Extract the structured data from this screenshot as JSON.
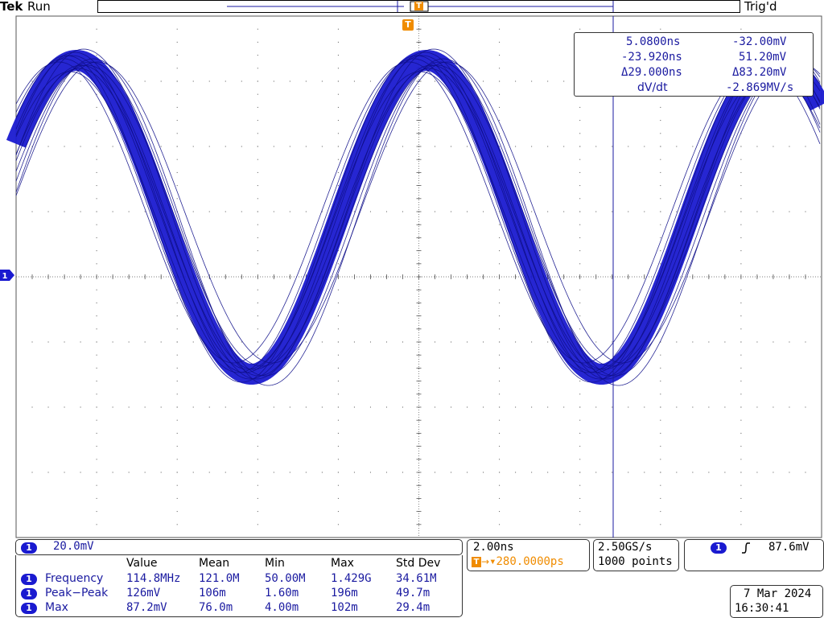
{
  "status": {
    "brand": "Tek",
    "run_state": "Run",
    "trigger_state": "Trig'd",
    "trigger_marker_glyph": "T"
  },
  "cursor_readout": {
    "row1": {
      "time": "5.0800ns",
      "volt": "-32.00mV"
    },
    "row2": {
      "time": "-23.920ns",
      "volt": "51.20mV"
    },
    "row3": {
      "time": "Δ29.000ns",
      "volt": "Δ83.20mV"
    },
    "row4": {
      "label": "dV/dt",
      "value": "-2.869MV/s"
    }
  },
  "channel": {
    "number": "1",
    "scale": "20.0mV",
    "color": "#1a1ad0"
  },
  "timebase": {
    "scale": "2.00ns",
    "delay": "▾280.0000ps",
    "sample_rate": "2.50GS/s",
    "record_length": "1000 points"
  },
  "trigger": {
    "source": "1",
    "slope_icon": "rising-edge-icon",
    "level": "87.6mV"
  },
  "measurements": {
    "headers": [
      "Value",
      "Mean",
      "Min",
      "Max",
      "Std Dev"
    ],
    "rows": [
      {
        "name": "Frequency",
        "values": [
          "114.8MHz",
          "121.0M",
          "50.00M",
          "1.429G",
          "34.61M"
        ]
      },
      {
        "name": "Peak−Peak",
        "values": [
          "126mV",
          "106m",
          "1.60m",
          "196m",
          "49.7m"
        ]
      },
      {
        "name": "Max",
        "values": [
          "87.2mV",
          "76.0m",
          "4.00m",
          "102m",
          "29.4m"
        ]
      }
    ]
  },
  "datetime": {
    "date": "7 Mar  2024",
    "time": "16:30:41"
  },
  "colors": {
    "trace": "#1a1ad0",
    "trigger": "#f08c00",
    "graticule": "#555555"
  }
}
